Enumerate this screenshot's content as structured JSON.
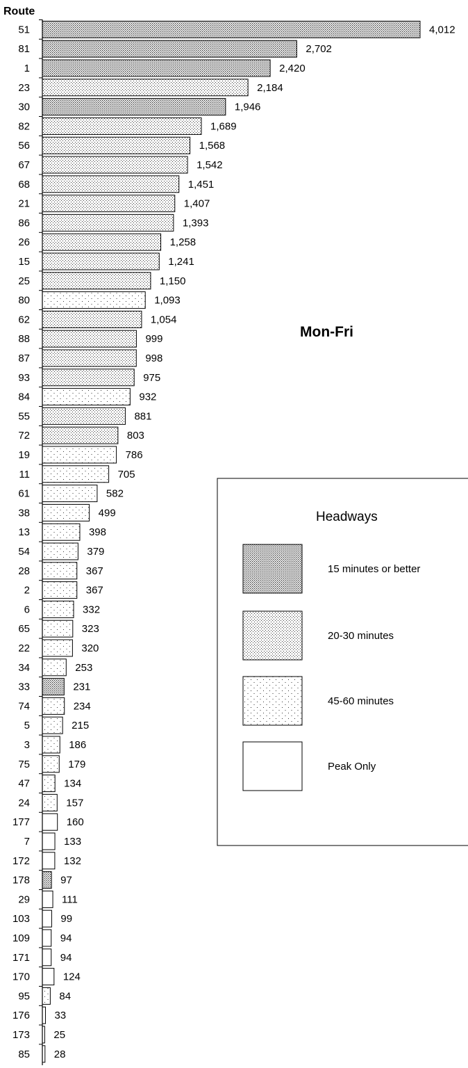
{
  "chart_data": {
    "type": "bar",
    "orientation": "horizontal",
    "title": "Mon-Fri",
    "ylabel": "Route",
    "xlim": [
      0,
      4012
    ],
    "grid": false,
    "legend_position": "right",
    "legend": {
      "title": "Headways",
      "entries": [
        {
          "key": "15",
          "label": "15 minutes or better"
        },
        {
          "key": "20-30",
          "label": "20-30 minutes"
        },
        {
          "key": "45-60",
          "label": "45-60 minutes"
        },
        {
          "key": "peak",
          "label": "Peak Only"
        }
      ]
    },
    "categories": [
      "51",
      "81",
      "1",
      "23",
      "30",
      "82",
      "56",
      "67",
      "68",
      "21",
      "86",
      "26",
      "15",
      "25",
      "80",
      "62",
      "88",
      "87",
      "93",
      "84",
      "55",
      "72",
      "19",
      "11",
      "61",
      "38",
      "13",
      "54",
      "28",
      "2",
      "6",
      "65",
      "22",
      "34",
      "33",
      "74",
      "5",
      "3",
      "75",
      "47",
      "24",
      "177",
      "7",
      "172",
      "178",
      "29",
      "103",
      "109",
      "171",
      "170",
      "95",
      "176",
      "173",
      "85"
    ],
    "values": [
      4012,
      2702,
      2420,
      2184,
      1946,
      1689,
      1568,
      1542,
      1451,
      1407,
      1393,
      1258,
      1241,
      1150,
      1093,
      1054,
      999,
      998,
      975,
      932,
      881,
      803,
      786,
      705,
      582,
      499,
      398,
      379,
      367,
      367,
      332,
      323,
      320,
      253,
      231,
      234,
      215,
      186,
      179,
      134,
      157,
      160,
      133,
      132,
      97,
      111,
      99,
      94,
      94,
      124,
      84,
      33,
      25,
      28
    ],
    "value_labels": [
      "4,012",
      "2,702",
      "2,420",
      "2,184",
      "1,946",
      "1,689",
      "1,568",
      "1,542",
      "1,451",
      "1,407",
      "1,393",
      "1,258",
      "1,241",
      "1,150",
      "1,093",
      "1,054",
      "999",
      "998",
      "975",
      "932",
      "881",
      "803",
      "786",
      "705",
      "582",
      "499",
      "398",
      "379",
      "367",
      "367",
      "332",
      "323",
      "320",
      "253",
      "231",
      "234",
      "215",
      "186",
      "179",
      "134",
      "157",
      "160",
      "133",
      "132",
      "97",
      "111",
      "99",
      "94",
      "94",
      "124",
      "84",
      "33",
      "25",
      "28"
    ],
    "headway": [
      "15",
      "15",
      "15",
      "20-30",
      "15",
      "20-30",
      "20-30",
      "20-30",
      "20-30",
      "20-30",
      "20-30",
      "20-30",
      "20-30",
      "20-30",
      "45-60",
      "20-30",
      "20-30",
      "20-30",
      "20-30",
      "45-60",
      "20-30",
      "20-30",
      "45-60",
      "45-60",
      "45-60",
      "45-60",
      "45-60",
      "45-60",
      "45-60",
      "45-60",
      "45-60",
      "45-60",
      "45-60",
      "45-60",
      "15",
      "45-60",
      "45-60",
      "45-60",
      "45-60",
      "45-60",
      "45-60",
      "peak",
      "peak",
      "peak",
      "15",
      "peak",
      "peak",
      "peak",
      "peak",
      "peak",
      "45-60",
      "peak",
      "peak",
      "peak"
    ]
  }
}
